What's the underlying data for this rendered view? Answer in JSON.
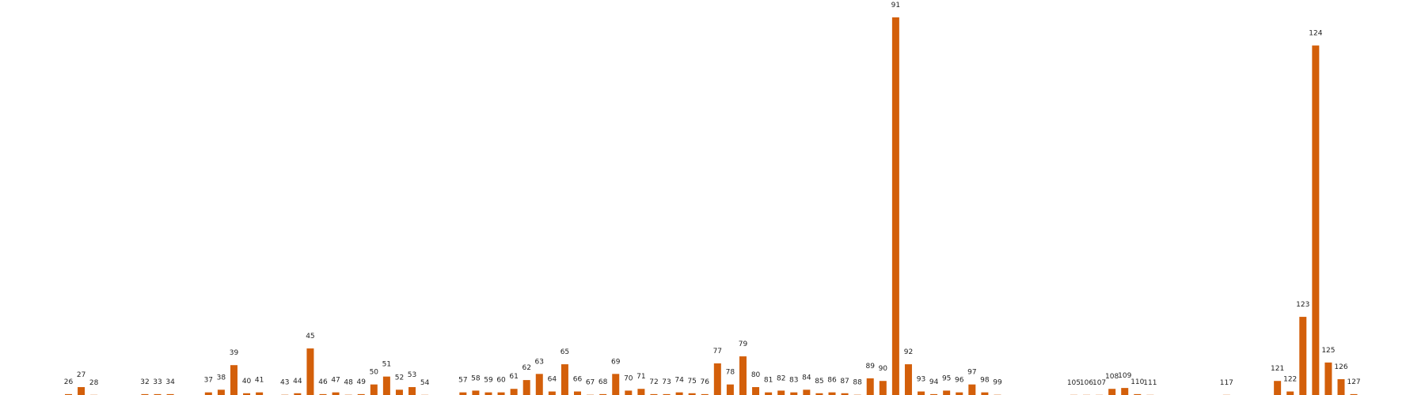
{
  "chart_data": {
    "type": "bar",
    "title": "",
    "xlabel": "",
    "ylabel": "",
    "grid": false,
    "color": "#d35f0a",
    "categories": [
      "26",
      "27",
      "28",
      "32",
      "33",
      "34",
      "37",
      "38",
      "39",
      "40",
      "41",
      "43",
      "44",
      "45",
      "46",
      "47",
      "48",
      "49",
      "50",
      "51",
      "52",
      "53",
      "54",
      "57",
      "58",
      "59",
      "60",
      "61",
      "62",
      "63",
      "64",
      "65",
      "66",
      "67",
      "68",
      "69",
      "70",
      "71",
      "72",
      "73",
      "74",
      "75",
      "76",
      "77",
      "78",
      "79",
      "80",
      "81",
      "82",
      "83",
      "84",
      "85",
      "86",
      "87",
      "88",
      "89",
      "90",
      "91",
      "92",
      "93",
      "94",
      "95",
      "96",
      "97",
      "98",
      "99",
      "105",
      "106",
      "107",
      "108",
      "109",
      "110",
      "111",
      "117",
      "121",
      "122",
      "123",
      "124",
      "125",
      "126",
      "127"
    ],
    "values": [
      1,
      9,
      0.2,
      1,
      1,
      1,
      3,
      6,
      34,
      2,
      3,
      0.3,
      2,
      53,
      1,
      3,
      0.3,
      1,
      12,
      21,
      6,
      9,
      0.2,
      3,
      5,
      3,
      3,
      7,
      17,
      24,
      4,
      35,
      4,
      0.3,
      1,
      24,
      5,
      7,
      1,
      1,
      3,
      2,
      1,
      36,
      12,
      44,
      9,
      3,
      5,
      3,
      6,
      2,
      3,
      2,
      0.3,
      19,
      16,
      430,
      35,
      4,
      1,
      5,
      3,
      12,
      3,
      0.3,
      0.2,
      0.2,
      0.2,
      7,
      8,
      1,
      0.2,
      0.2,
      16,
      4,
      89,
      398,
      37,
      18,
      1
    ],
    "ylim": [
      0,
      430
    ]
  }
}
